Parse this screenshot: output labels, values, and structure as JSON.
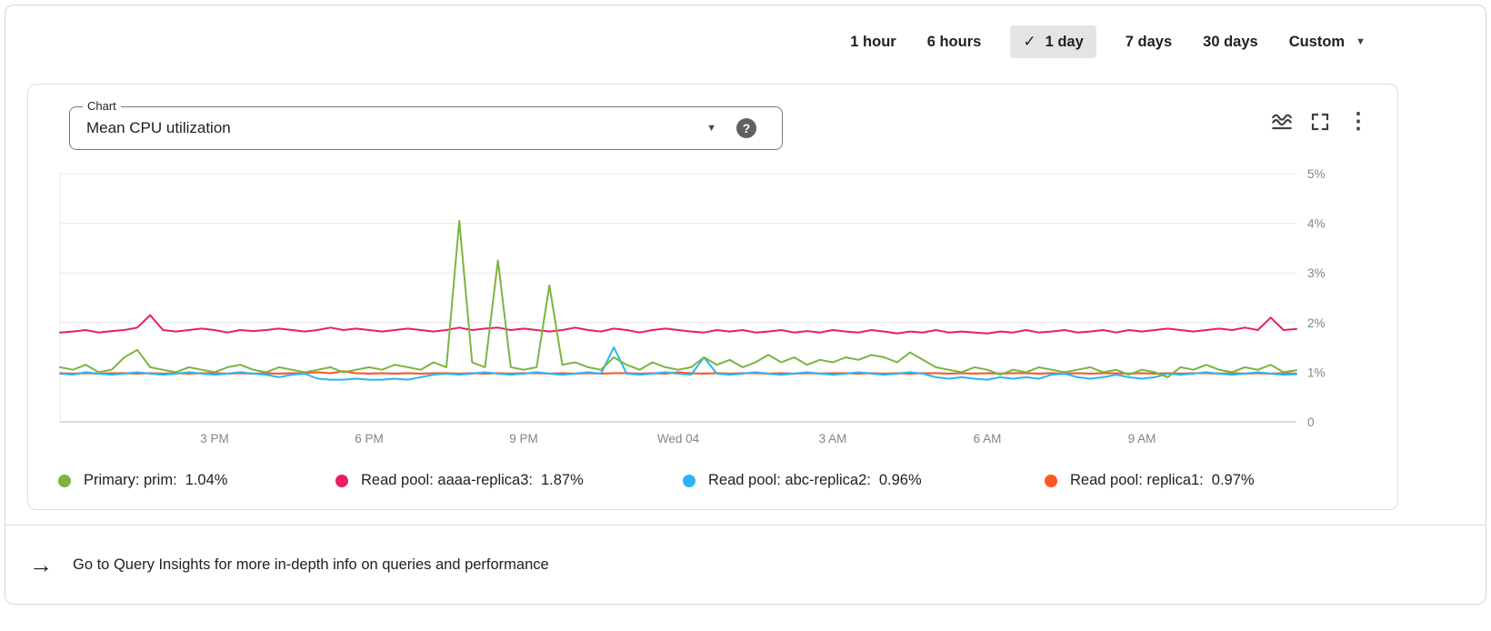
{
  "time_range": {
    "options": [
      "1 hour",
      "6 hours",
      "1 day",
      "7 days",
      "30 days",
      "Custom"
    ],
    "selected": "1 day"
  },
  "icons": {
    "check": "✓",
    "dropdown_arrow": "▼",
    "help": "?",
    "more_vert": "⋮",
    "footer_arrow": "→"
  },
  "chart_selector": {
    "label": "Chart",
    "value": "Mean CPU utilization"
  },
  "legend": [
    {
      "label": "Primary: prim:",
      "value": "1.04%"
    },
    {
      "label": "Read pool: aaaa-replica3:",
      "value": "1.87%"
    },
    {
      "label": "Read pool: abc-replica2:",
      "value": "0.96%"
    },
    {
      "label": "Read pool: replica1:",
      "value": "0.97%"
    }
  ],
  "footer": {
    "text": "Go to Query Insights for more in-depth info on queries and performance"
  },
  "chart_data": {
    "type": "line",
    "title": "Mean CPU utilization",
    "grid": true,
    "legend_position": "bottom",
    "ylim": [
      0,
      5
    ],
    "x_range_hours": 24,
    "y_ticks": [
      {
        "v": 5,
        "label": "5%"
      },
      {
        "v": 4,
        "label": "4%"
      },
      {
        "v": 3,
        "label": "3%"
      },
      {
        "v": 2,
        "label": "2%"
      },
      {
        "v": 1,
        "label": "1%"
      },
      {
        "v": 0,
        "label": "0"
      }
    ],
    "x_ticks": [
      {
        "h": 3,
        "label": "3 PM"
      },
      {
        "h": 6,
        "label": "6 PM"
      },
      {
        "h": 9,
        "label": "9 PM"
      },
      {
        "h": 12,
        "label": "Wed 04"
      },
      {
        "h": 15,
        "label": "3 AM"
      },
      {
        "h": 18,
        "label": "6 AM"
      },
      {
        "h": 21,
        "label": "9 AM"
      }
    ],
    "series": [
      {
        "name": "Primary: prim",
        "current": 1.04,
        "color": "#7cb342",
        "values": [
          1.1,
          1.05,
          1.15,
          1.0,
          1.05,
          1.3,
          1.45,
          1.1,
          1.05,
          1.0,
          1.1,
          1.05,
          1.0,
          1.1,
          1.15,
          1.05,
          1.0,
          1.1,
          1.05,
          1.0,
          1.05,
          1.1,
          1.0,
          1.05,
          1.1,
          1.05,
          1.15,
          1.1,
          1.05,
          1.2,
          1.1,
          4.05,
          1.2,
          1.1,
          3.25,
          1.1,
          1.05,
          1.1,
          2.75,
          1.15,
          1.2,
          1.1,
          1.05,
          1.3,
          1.15,
          1.05,
          1.2,
          1.1,
          1.05,
          1.1,
          1.3,
          1.15,
          1.25,
          1.1,
          1.2,
          1.35,
          1.2,
          1.3,
          1.15,
          1.25,
          1.2,
          1.3,
          1.25,
          1.35,
          1.3,
          1.2,
          1.4,
          1.25,
          1.1,
          1.05,
          1.0,
          1.1,
          1.05,
          0.95,
          1.05,
          1.0,
          1.1,
          1.05,
          1.0,
          1.05,
          1.1,
          1.0,
          1.05,
          0.95,
          1.05,
          1.0,
          0.9,
          1.1,
          1.05,
          1.15,
          1.05,
          1.0,
          1.1,
          1.05,
          1.15,
          1.0,
          1.04
        ]
      },
      {
        "name": "Read pool: aaaa-replica3",
        "current": 1.87,
        "color": "#e91e63",
        "values": [
          1.8,
          1.82,
          1.85,
          1.8,
          1.83,
          1.85,
          1.9,
          2.15,
          1.85,
          1.82,
          1.85,
          1.88,
          1.85,
          1.8,
          1.85,
          1.83,
          1.85,
          1.88,
          1.85,
          1.82,
          1.85,
          1.9,
          1.85,
          1.88,
          1.85,
          1.82,
          1.85,
          1.88,
          1.85,
          1.82,
          1.85,
          1.9,
          1.85,
          1.88,
          1.9,
          1.85,
          1.88,
          1.85,
          1.82,
          1.85,
          1.9,
          1.85,
          1.82,
          1.88,
          1.85,
          1.8,
          1.85,
          1.88,
          1.85,
          1.82,
          1.8,
          1.85,
          1.82,
          1.85,
          1.8,
          1.82,
          1.85,
          1.8,
          1.83,
          1.8,
          1.85,
          1.82,
          1.8,
          1.85,
          1.82,
          1.78,
          1.82,
          1.8,
          1.85,
          1.8,
          1.82,
          1.8,
          1.78,
          1.82,
          1.8,
          1.85,
          1.8,
          1.82,
          1.85,
          1.8,
          1.82,
          1.85,
          1.8,
          1.85,
          1.82,
          1.85,
          1.88,
          1.85,
          1.82,
          1.85,
          1.88,
          1.85,
          1.9,
          1.85,
          2.1,
          1.85,
          1.87
        ]
      },
      {
        "name": "Read pool: abc-replica2",
        "current": 0.96,
        "color": "#29b6f6",
        "values": [
          0.97,
          0.95,
          1.0,
          0.97,
          0.95,
          0.97,
          1.0,
          0.97,
          0.95,
          0.97,
          1.0,
          0.97,
          0.95,
          0.97,
          1.0,
          0.97,
          0.95,
          0.9,
          0.95,
          0.97,
          0.87,
          0.85,
          0.85,
          0.87,
          0.85,
          0.85,
          0.87,
          0.85,
          0.9,
          0.95,
          0.97,
          0.95,
          0.97,
          1.0,
          0.97,
          0.95,
          0.97,
          1.0,
          0.97,
          0.95,
          0.97,
          1.0,
          0.97,
          1.5,
          0.97,
          0.95,
          0.97,
          1.0,
          0.97,
          0.95,
          1.3,
          0.97,
          0.95,
          0.97,
          1.0,
          0.97,
          0.95,
          0.97,
          1.0,
          0.97,
          0.95,
          0.97,
          1.0,
          0.97,
          0.95,
          0.97,
          1.0,
          0.97,
          0.9,
          0.87,
          0.9,
          0.87,
          0.85,
          0.9,
          0.87,
          0.9,
          0.87,
          0.95,
          0.97,
          0.9,
          0.87,
          0.9,
          0.95,
          0.9,
          0.87,
          0.9,
          0.97,
          0.95,
          0.97,
          1.0,
          0.97,
          0.95,
          0.97,
          1.0,
          0.97,
          0.95,
          0.96
        ]
      },
      {
        "name": "Read pool: replica1",
        "current": 0.97,
        "color": "#ff5722",
        "values": [
          0.98,
          0.97,
          0.98,
          0.97,
          0.98,
          0.98,
          0.97,
          0.98,
          0.97,
          0.98,
          0.97,
          0.98,
          0.98,
          0.97,
          0.98,
          0.97,
          0.98,
          0.97,
          0.98,
          0.98,
          1.0,
          0.98,
          1.02,
          0.98,
          0.97,
          0.98,
          0.97,
          0.98,
          0.97,
          0.98,
          0.98,
          0.97,
          0.98,
          0.97,
          0.98,
          0.97,
          0.98,
          0.98,
          0.97,
          0.98,
          0.97,
          0.98,
          0.97,
          0.98,
          0.98,
          0.97,
          0.98,
          0.97,
          1.0,
          0.98,
          0.97,
          0.98,
          0.97,
          0.98,
          0.98,
          0.97,
          0.98,
          0.97,
          0.98,
          0.97,
          0.98,
          0.98,
          0.97,
          0.98,
          0.97,
          0.98,
          0.97,
          0.98,
          0.98,
          0.97,
          0.98,
          0.97,
          0.98,
          0.97,
          0.98,
          0.98,
          0.97,
          0.98,
          0.97,
          0.98,
          0.97,
          0.98,
          0.98,
          0.97,
          0.98,
          0.97,
          0.98,
          0.97,
          0.98,
          0.98,
          0.97,
          0.98,
          0.97,
          0.98,
          0.97,
          0.98,
          0.97
        ]
      }
    ]
  }
}
